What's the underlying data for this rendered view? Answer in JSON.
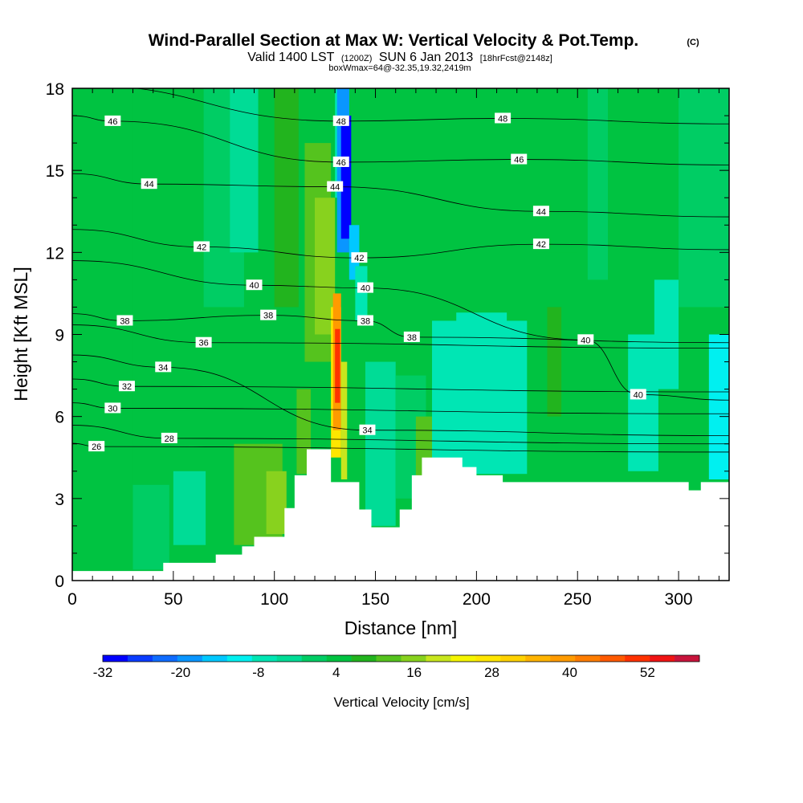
{
  "title": {
    "main": "Wind-Parallel Section at Max W: Vertical Velocity & Pot.Temp.",
    "copyright": "(C)",
    "valid_prefix": "Valid 1400 LST",
    "valid_z": "(1200Z)",
    "valid_date": "SUN 6 Jan 2013",
    "forecast": "[18hrFcst@2148z]",
    "box_info": "boxWmax=64@-32.35,19.32,2419m"
  },
  "chart_data": {
    "type": "heatmap",
    "xlabel": "Distance [nm]",
    "ylabel": "Height [Kft MSL]",
    "xlim": [
      0,
      325
    ],
    "ylim": [
      0,
      18
    ],
    "x_ticks": [
      "0",
      "50",
      "100",
      "150",
      "200",
      "250",
      "300"
    ],
    "y_ticks": [
      "0",
      "3",
      "6",
      "9",
      "12",
      "15",
      "18"
    ],
    "x_tick_values": [
      0,
      50,
      100,
      150,
      200,
      250,
      300
    ],
    "y_tick_values": [
      0,
      3,
      6,
      9,
      12,
      15,
      18
    ],
    "terrain": [
      [
        0,
        0.35
      ],
      [
        45,
        0.35
      ],
      [
        45,
        0.65
      ],
      [
        71,
        0.65
      ],
      [
        71,
        0.95
      ],
      [
        84,
        0.95
      ],
      [
        84,
        1.25
      ],
      [
        90,
        1.25
      ],
      [
        90,
        1.6
      ],
      [
        98,
        1.6
      ],
      [
        98,
        1.6
      ],
      [
        105,
        1.6
      ],
      [
        105,
        2.65
      ],
      [
        110,
        2.65
      ],
      [
        110,
        3.85
      ],
      [
        116,
        3.85
      ],
      [
        116,
        4.8
      ],
      [
        128,
        4.8
      ],
      [
        128,
        3.6
      ],
      [
        133,
        3.6
      ],
      [
        133,
        3.6
      ],
      [
        138,
        3.6
      ],
      [
        138,
        3.6
      ],
      [
        142,
        3.6
      ],
      [
        142,
        2.6
      ],
      [
        148,
        2.6
      ],
      [
        148,
        1.95
      ],
      [
        162,
        1.95
      ],
      [
        162,
        2.6
      ],
      [
        168,
        2.6
      ],
      [
        168,
        3.85
      ],
      [
        173,
        3.85
      ],
      [
        173,
        4.5
      ],
      [
        193,
        4.5
      ],
      [
        193,
        4.15
      ],
      [
        200,
        4.15
      ],
      [
        200,
        3.85
      ],
      [
        213,
        3.85
      ],
      [
        213,
        3.6
      ],
      [
        305,
        3.6
      ],
      [
        305,
        3.3
      ],
      [
        311,
        3.3
      ],
      [
        311,
        3.6
      ],
      [
        325,
        3.6
      ]
    ],
    "cells": [
      {
        "x0": 0,
        "x1": 325,
        "y0": 0,
        "y1": 18,
        "w": 6
      },
      {
        "x0": 0,
        "x1": 30,
        "y0": 0,
        "y1": 18,
        "w": 4
      },
      {
        "x0": 65,
        "x1": 85,
        "y0": 10,
        "y1": 18,
        "w": 0
      },
      {
        "x0": 78,
        "x1": 92,
        "y0": 12,
        "y1": 18,
        "w": -2
      },
      {
        "x0": 100,
        "x1": 112,
        "y0": 10,
        "y1": 18,
        "w": 10
      },
      {
        "x0": 115,
        "x1": 128,
        "y0": 8,
        "y1": 16,
        "w": 12
      },
      {
        "x0": 120,
        "x1": 130,
        "y0": 9,
        "y1": 14,
        "w": 16
      },
      {
        "x0": 50,
        "x1": 66,
        "y0": 1.3,
        "y1": 4,
        "w": -4
      },
      {
        "x0": 30,
        "x1": 48,
        "y0": 0.4,
        "y1": 3.5,
        "w": 2
      },
      {
        "x0": 80,
        "x1": 104,
        "y0": 1.3,
        "y1": 5,
        "w": 12
      },
      {
        "x0": 96,
        "x1": 106,
        "y0": 1.7,
        "y1": 4,
        "w": 18
      },
      {
        "x0": 111,
        "x1": 118,
        "y0": 3.9,
        "y1": 7,
        "w": 14
      },
      {
        "x0": 145,
        "x1": 160,
        "y0": 2,
        "y1": 8,
        "w": -4
      },
      {
        "x0": 160,
        "x1": 175,
        "y0": 3,
        "y1": 7.5,
        "w": 2
      },
      {
        "x0": 170,
        "x1": 178,
        "y0": 3.8,
        "y1": 6,
        "w": 14
      },
      {
        "x0": 178,
        "x1": 225,
        "y0": 3.9,
        "y1": 9.5,
        "w": -6
      },
      {
        "x0": 190,
        "x1": 215,
        "y0": 4.5,
        "y1": 9.8,
        "w": -8
      },
      {
        "x0": 230,
        "x1": 250,
        "y0": 4,
        "y1": 12,
        "w": 4
      },
      {
        "x0": 235,
        "x1": 242,
        "y0": 6,
        "y1": 10,
        "w": 10
      },
      {
        "x0": 275,
        "x1": 290,
        "y0": 4,
        "y1": 9,
        "w": -6
      },
      {
        "x0": 288,
        "x1": 300,
        "y0": 7,
        "y1": 11,
        "w": -8
      },
      {
        "x0": 315,
        "x1": 325,
        "y0": 3.7,
        "y1": 9,
        "w": -10
      },
      {
        "x0": 300,
        "x1": 325,
        "y0": 10,
        "y1": 18,
        "w": 2
      },
      {
        "x0": 255,
        "x1": 265,
        "y0": 11,
        "y1": 18,
        "w": 2
      },
      {
        "x0": 130,
        "x1": 137,
        "y0": 14,
        "y1": 18,
        "w": -8
      },
      {
        "x0": 131,
        "x1": 137,
        "y0": 12,
        "y1": 18,
        "w": -20
      },
      {
        "x0": 133,
        "x1": 138,
        "y0": 12.5,
        "y1": 17,
        "w": -30
      },
      {
        "x0": 137,
        "x1": 142,
        "y0": 11,
        "y1": 13,
        "w": -14
      },
      {
        "x0": 140,
        "x1": 146,
        "y0": 9.5,
        "y1": 11.5,
        "w": -6
      },
      {
        "x0": 128,
        "x1": 133,
        "y0": 4.5,
        "y1": 10,
        "w": 28
      },
      {
        "x0": 129,
        "x1": 133,
        "y0": 5.5,
        "y1": 10.5,
        "w": 40
      },
      {
        "x0": 130,
        "x1": 132.5,
        "y0": 6.5,
        "y1": 9.2,
        "w": 52
      },
      {
        "x0": 133,
        "x1": 136,
        "y0": 3.7,
        "y1": 8,
        "w": 20
      }
    ],
    "isentropes": [
      {
        "value": "26",
        "label_x": 12,
        "label_y": 4.9
      },
      {
        "value": "28",
        "label_x": 48,
        "label_y": 5.2
      },
      {
        "value": "30",
        "label_x": 20,
        "label_y": 6.3
      },
      {
        "value": "32",
        "label_x": 27,
        "label_y": 7.1
      },
      {
        "value": "34",
        "label_x": 45,
        "label_y": 7.8
      },
      {
        "value": "34",
        "label_x": 146,
        "label_y": 5.5
      },
      {
        "value": "36",
        "label_x": 65,
        "label_y": 8.7
      },
      {
        "value": "38",
        "label_x": 26,
        "label_y": 9.5
      },
      {
        "value": "38",
        "label_x": 97,
        "label_y": 9.7
      },
      {
        "value": "38",
        "label_x": 145,
        "label_y": 9.5
      },
      {
        "value": "38",
        "label_x": 168,
        "label_y": 8.9
      },
      {
        "value": "40",
        "label_x": 90,
        "label_y": 10.8
      },
      {
        "value": "40",
        "label_x": 145,
        "label_y": 10.7
      },
      {
        "value": "40",
        "label_x": 254,
        "label_y": 8.8
      },
      {
        "value": "40",
        "label_x": 280,
        "label_y": 6.8
      },
      {
        "value": "42",
        "label_x": 64,
        "label_y": 12.2
      },
      {
        "value": "42",
        "label_x": 142,
        "label_y": 11.8
      },
      {
        "value": "42",
        "label_x": 232,
        "label_y": 12.3
      },
      {
        "value": "44",
        "label_x": 38,
        "label_y": 14.5
      },
      {
        "value": "44",
        "label_x": 130,
        "label_y": 14.4
      },
      {
        "value": "44",
        "label_x": 232,
        "label_y": 13.5
      },
      {
        "value": "46",
        "label_x": 20,
        "label_y": 16.8
      },
      {
        "value": "46",
        "label_x": 133,
        "label_y": 15.3
      },
      {
        "value": "46",
        "label_x": 221,
        "label_y": 15.4
      },
      {
        "value": "48",
        "label_x": 133,
        "label_y": 16.8
      },
      {
        "value": "48",
        "label_x": 213,
        "label_y": 16.9
      }
    ],
    "colorbar": {
      "title": "Vertical Velocity [cm/s]",
      "tick_labels": [
        "-32",
        "-20",
        "-8",
        "4",
        "16",
        "28",
        "40",
        "52"
      ],
      "tick_values": [
        -32,
        -20,
        -8,
        4,
        16,
        28,
        40,
        52
      ],
      "levels": [
        -32,
        -28,
        -24,
        -20,
        -16,
        -12,
        -8,
        -4,
        0,
        4,
        8,
        12,
        16,
        20,
        24,
        28,
        32,
        36,
        40,
        44,
        48,
        52,
        56,
        60
      ],
      "colors": [
        "#0000ff",
        "#0a3cff",
        "#0f6cff",
        "#0a96ff",
        "#00c8ff",
        "#00f0f0",
        "#00e6b4",
        "#00dc96",
        "#00cd64",
        "#00c341",
        "#22b41e",
        "#55c31e",
        "#88d21e",
        "#c8e61e",
        "#f5f500",
        "#ffe600",
        "#ffd200",
        "#ffb400",
        "#ff9b00",
        "#ff7d00",
        "#ff5a00",
        "#ff3200",
        "#f01414",
        "#c8143c"
      ]
    }
  }
}
